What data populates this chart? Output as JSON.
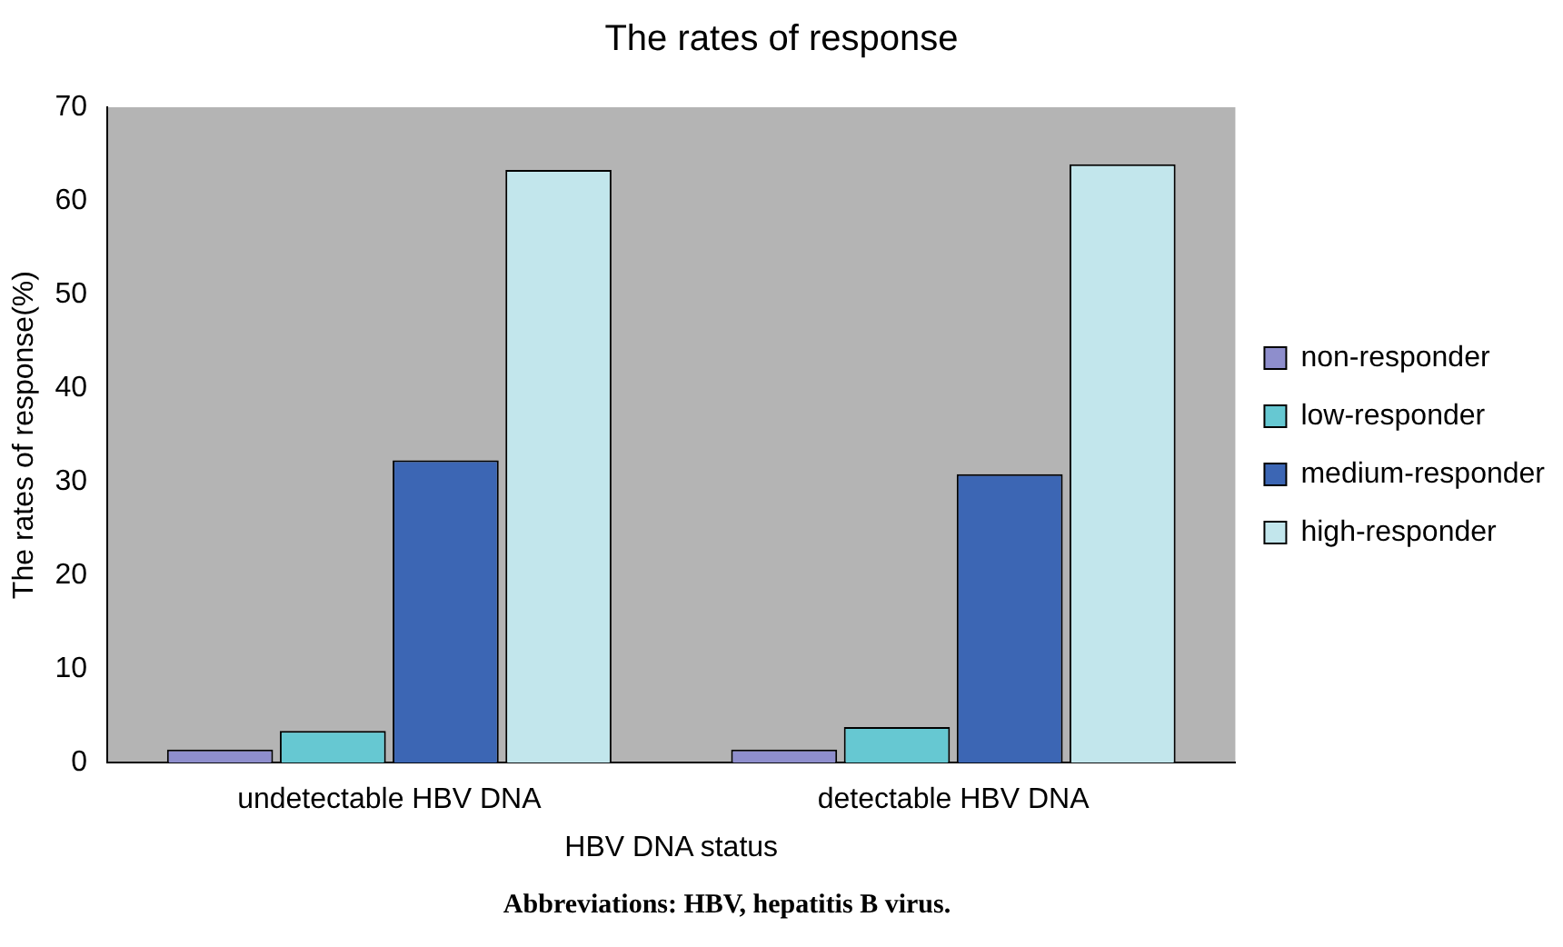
{
  "chart_data": {
    "type": "bar",
    "title": "The rates of response",
    "xlabel": "HBV DNA status",
    "ylabel": "The rates of response(%)",
    "categories": [
      "undetectable HBV DNA",
      "detectable HBV DNA"
    ],
    "series": [
      {
        "name": "non-responder",
        "color": "#8e8ecc",
        "values": [
          1.4,
          1.4
        ]
      },
      {
        "name": "low-responder",
        "color": "#66c8d2",
        "values": [
          3.4,
          3.8
        ]
      },
      {
        "name": "medium-responder",
        "color": "#3c66b4",
        "values": [
          32.3,
          30.8
        ]
      },
      {
        "name": "high-responder",
        "color": "#c2e6ec",
        "values": [
          63.3,
          63.9
        ]
      }
    ],
    "ylim": [
      0,
      70
    ],
    "yticks": [
      0,
      10,
      20,
      30,
      40,
      50,
      60,
      70
    ],
    "grid": false,
    "legend": "right",
    "annotations": [
      "Abbreviations: HBV, hepatitis B virus."
    ]
  }
}
